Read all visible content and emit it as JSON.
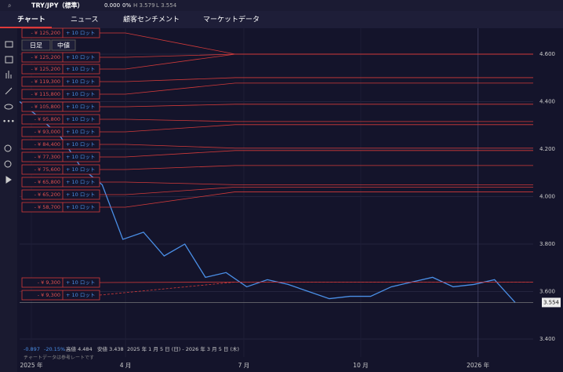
{
  "top_bar": {
    "symbol": "TRY/JPY（標準）",
    "change": "0.000",
    "change_pct": "0%",
    "high": "H 3.579",
    "low": "L 3.554"
  },
  "tabs": [
    "チャート",
    "ニュース",
    "顧客センチメント",
    "マーケットデータ"
  ],
  "overlay_buttons": [
    "日足",
    "中値"
  ],
  "chart_data": {
    "type": "line",
    "series": [
      {
        "color": "#4a8fe7",
        "values": [
          4.4,
          4.33,
          4.25,
          4.12,
          4.05,
          3.82,
          3.85,
          3.75,
          3.8,
          3.66,
          3.68,
          3.62,
          3.65,
          3.63,
          3.6,
          3.57,
          3.58,
          3.58,
          3.62,
          3.64,
          3.66,
          3.62,
          3.63,
          3.65,
          3.554
        ]
      }
    ],
    "xlim": [
      0,
      24
    ],
    "xticks": [
      {
        "value": 0.57,
        "label": "2025 年"
      },
      {
        "value": 5.13,
        "label": "4 月"
      },
      {
        "value": 10.86,
        "label": "7 月"
      },
      {
        "value": 16.52,
        "label": "10 月"
      },
      {
        "value": 22.2,
        "label": "2026 年"
      }
    ],
    "ylim": [
      3.324,
      4.709
    ],
    "yticks": [
      {
        "value": 4.6,
        "label": "4.600"
      },
      {
        "value": 4.4,
        "label": "4.400"
      },
      {
        "value": 4.2,
        "label": "4.200"
      },
      {
        "value": 4.0,
        "label": "4.000"
      },
      {
        "value": 3.8,
        "label": "3.800"
      },
      {
        "value": 3.6,
        "label": "3.600"
      },
      {
        "value": 3.4,
        "label": "3.400"
      }
    ],
    "last_price": {
      "value": 3.554,
      "label": "3.554"
    },
    "positions": [
      {
        "loss": "- ¥ 125,200",
        "lot": "+ 10 ロット",
        "entry": 4.6
      },
      {
        "loss": "- ¥ 125,200",
        "lot": "+ 10 ロット",
        "entry": 4.6
      },
      {
        "loss": "- ¥ 125,200",
        "lot": "+ 10 ロット",
        "entry": 4.6
      },
      {
        "loss": "- ¥ 119,300",
        "lot": "+ 10 ロット",
        "entry": 4.501
      },
      {
        "loss": "- ¥ 115,800",
        "lot": "+ 10 ロット",
        "entry": 4.478
      },
      {
        "loss": "- ¥ 105,800",
        "lot": "+ 10 ロット",
        "entry": 4.389
      },
      {
        "loss": "- ¥ 95,800",
        "lot": "+ 10 ロット",
        "entry": 4.316
      },
      {
        "loss": "- ¥ 93,000",
        "lot": "+ 10 ロット",
        "entry": 4.303
      },
      {
        "loss": "- ¥ 84,400",
        "lot": "+ 10 ロット",
        "entry": 4.204
      },
      {
        "loss": "- ¥ 77,300",
        "lot": "+ 10 ロット",
        "entry": 4.194
      },
      {
        "loss": "- ¥ 75,600",
        "lot": "+ 10 ロット",
        "entry": 4.131
      },
      {
        "loss": "- ¥ 65,800",
        "lot": "+ 10 ロット",
        "entry": 4.05
      },
      {
        "loss": "- ¥ 65,200",
        "lot": "+ 10 ロット",
        "entry": 4.04
      },
      {
        "loss": "- ¥ 58,700",
        "lot": "+ 10 ロット",
        "entry": 4.02
      },
      {
        "loss": "- ¥ 9,300",
        "lot": "+ 10 ロット",
        "entry": 3.64
      },
      {
        "loss": "- ¥ 9,300",
        "lot": "+ 10 ロット",
        "entry": 3.64
      }
    ],
    "info": {
      "change": "-0.897",
      "change_pct": "-20.15%",
      "high": "高値 4.484",
      "low": "安値 3.438",
      "range": "2025 年 1 月 5 日 (日) - 2026 年 3 月 5 日 (木)",
      "note": "チャートデータは参考レートです"
    }
  }
}
